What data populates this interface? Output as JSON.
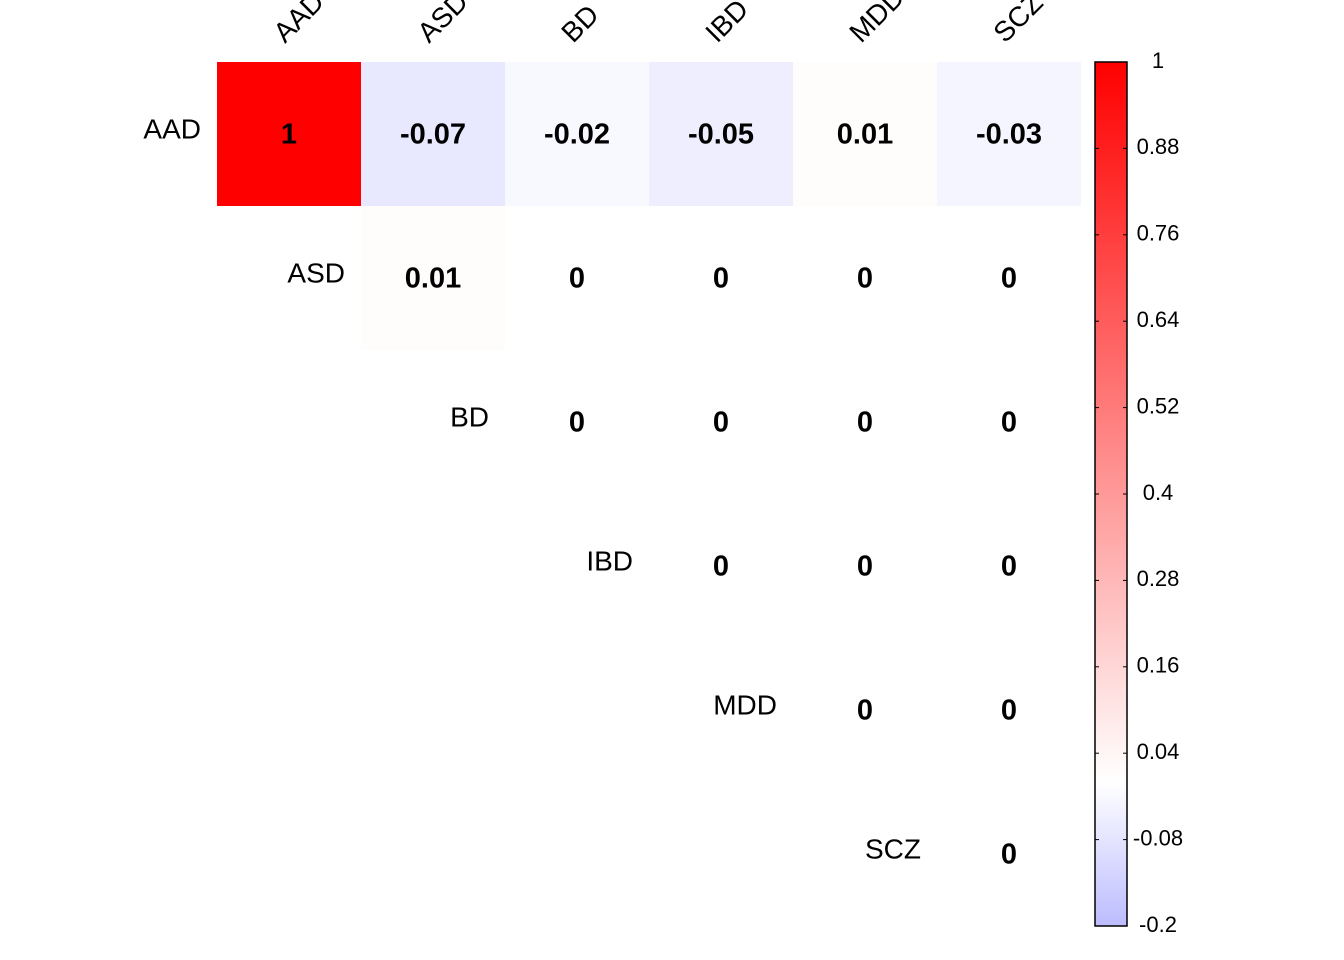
{
  "chart_data": {
    "type": "heatmap",
    "labels": [
      "AAD",
      "ASD",
      "BD",
      "IBD",
      "MDD",
      "SCZ"
    ],
    "values": [
      [
        1,
        -0.07,
        -0.02,
        -0.05,
        0.01,
        -0.03
      ],
      [
        null,
        0.01,
        0,
        0,
        0,
        0
      ],
      [
        null,
        null,
        0,
        0,
        0,
        0
      ],
      [
        null,
        null,
        null,
        0,
        0,
        0
      ],
      [
        null,
        null,
        null,
        null,
        0,
        0
      ],
      [
        null,
        null,
        null,
        null,
        null,
        0
      ]
    ],
    "clim": [
      -0.2,
      1
    ],
    "cticks": [
      1,
      0.88,
      0.76,
      0.64,
      0.52,
      0.4,
      0.28,
      0.16,
      0.04,
      -0.08,
      -0.2
    ],
    "color_stops": [
      {
        "value": -0.2,
        "color": "#bcbcff"
      },
      {
        "value": 0,
        "color": "#ffffff"
      },
      {
        "value": 1,
        "color": "#ff0000"
      }
    ]
  }
}
